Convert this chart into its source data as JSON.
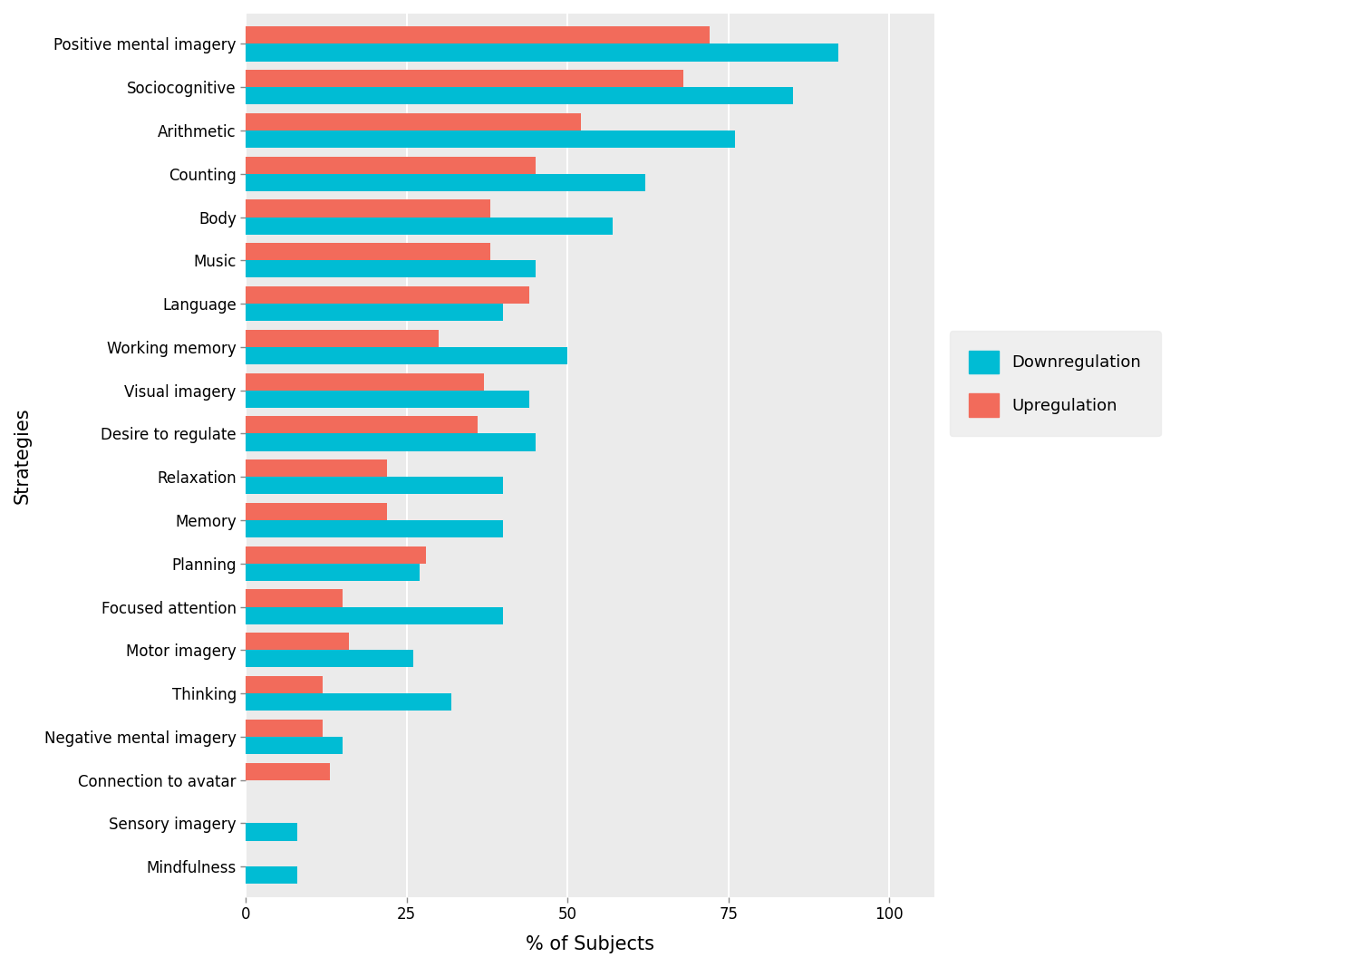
{
  "categories": [
    "Positive mental imagery",
    "Sociocognitive",
    "Arithmetic",
    "Counting",
    "Body",
    "Music",
    "Language",
    "Working memory",
    "Visual imagery",
    "Desire to regulate",
    "Relaxation",
    "Memory",
    "Planning",
    "Focused attention",
    "Motor imagery",
    "Thinking",
    "Negative mental imagery",
    "Connection to avatar",
    "Sensory imagery",
    "Mindfulness"
  ],
  "downregulation": [
    92,
    85,
    76,
    62,
    57,
    45,
    40,
    50,
    44,
    45,
    40,
    40,
    27,
    40,
    26,
    32,
    15,
    0,
    8,
    8
  ],
  "upregulation": [
    72,
    68,
    52,
    45,
    38,
    38,
    44,
    30,
    37,
    36,
    22,
    22,
    28,
    15,
    16,
    12,
    12,
    13,
    0,
    0
  ],
  "downregulation_color": "#00BCD4",
  "upregulation_color": "#F26B5B",
  "plot_bg_color": "#EBEBEB",
  "fig_bg_color": "#FFFFFF",
  "grid_color": "#FFFFFF",
  "xlabel": "% of Subjects",
  "ylabel": "Strategies",
  "xlim": [
    0,
    107
  ],
  "legend_labels": [
    "Downregulation",
    "Upregulation"
  ],
  "bar_height": 0.4,
  "xlabel_fontsize": 15,
  "ylabel_fontsize": 15,
  "tick_fontsize": 12,
  "legend_fontsize": 13
}
